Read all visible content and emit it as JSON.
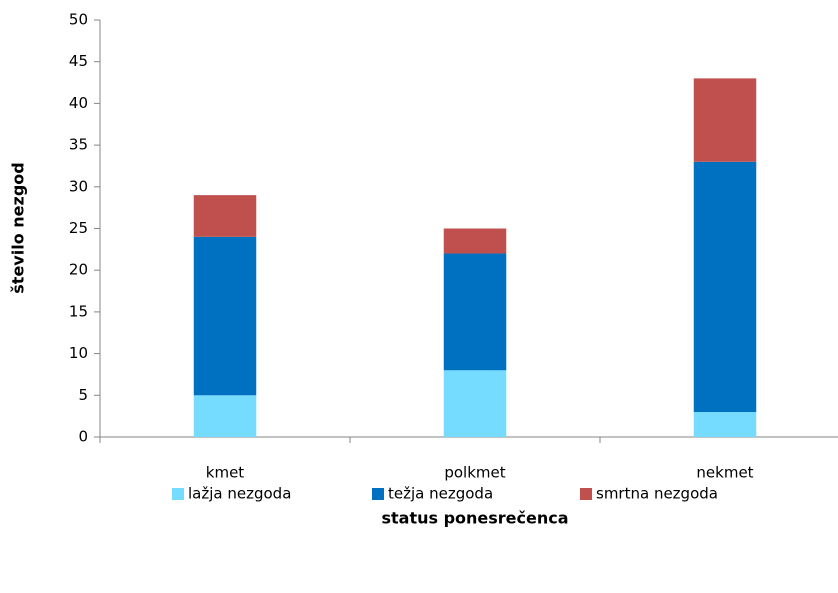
{
  "chart_data": {
    "type": "stacked_bar",
    "x_label": "status ponesrečenca",
    "y_label": "število nezgod",
    "categories": [
      "kmet",
      "polkmet",
      "nekmet"
    ],
    "series": [
      {
        "name": "lažja nezgoda",
        "color": "#75dcff",
        "values": [
          5,
          8,
          3
        ]
      },
      {
        "name": "težja nezgoda",
        "color": "#0070c0",
        "values": [
          19,
          14,
          30
        ]
      },
      {
        "name": "smrtna nezgoda",
        "color": "#c0504d",
        "values": [
          5,
          3,
          10
        ]
      }
    ],
    "ylim": [
      0,
      50
    ],
    "yticks": [
      0,
      5,
      10,
      15,
      20,
      25,
      30,
      35,
      40,
      45,
      50
    ],
    "grid": false,
    "legend": "bottom"
  }
}
